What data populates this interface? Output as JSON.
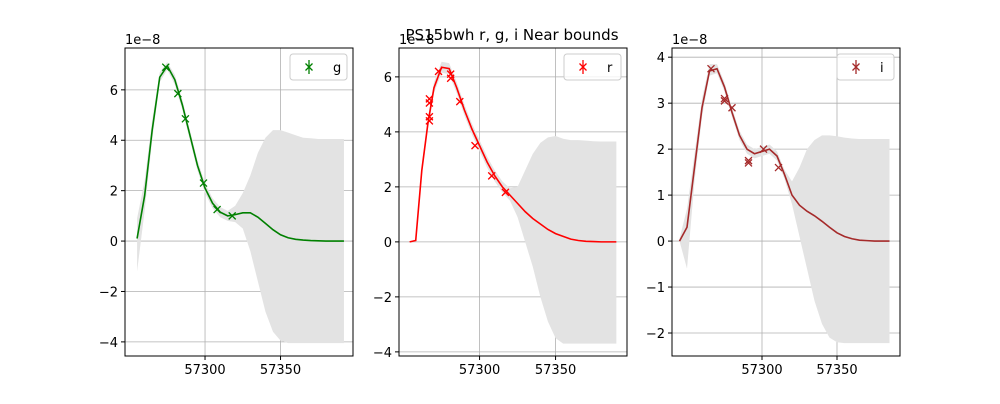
{
  "title": "PS15bwh  r, g, i Near bounds",
  "chart_data": [
    {
      "type": "line",
      "offset_label": "1e−8",
      "xlim": [
        57247,
        57398
      ],
      "xticks": [
        57300,
        57350
      ],
      "ylim": [
        -4.56,
        7.66
      ],
      "yticks": [
        {
          "value": -4,
          "label": "−4"
        },
        {
          "value": -2,
          "label": "−2"
        },
        0,
        2,
        4,
        6
      ],
      "grid": true,
      "legend": "upper right",
      "model": {
        "color": "#008000",
        "band_color": "#e3e3e3",
        "x": [
          57255,
          57260,
          57265,
          57270,
          57275,
          57280,
          57285,
          57290,
          57295,
          57300,
          57305,
          57310,
          57315,
          57320,
          57325,
          57330,
          57335,
          57340,
          57345,
          57350,
          57355,
          57360,
          57365,
          57370,
          57375,
          57380,
          57385,
          57392
        ],
        "values": [
          0.1,
          1.8,
          4.4,
          6.5,
          6.95,
          6.4,
          5.4,
          4.2,
          3.0,
          2.1,
          1.5,
          1.15,
          1.0,
          1.05,
          1.12,
          1.12,
          0.95,
          0.7,
          0.45,
          0.25,
          0.13,
          0.07,
          0.04,
          0.02,
          0.01,
          0,
          0,
          0
        ],
        "band_lower": [
          -1.2,
          1.2,
          4.0,
          6.3,
          6.8,
          6.2,
          5.2,
          4.0,
          2.8,
          1.9,
          1.3,
          0.95,
          0.8,
          0.75,
          0.5,
          -0.4,
          -1.6,
          -2.8,
          -3.6,
          -3.95,
          -4.05,
          -4.05,
          -4.05,
          -4.05,
          -4.05,
          -4.05,
          -4.05,
          -4.05
        ],
        "band_upper": [
          0.9,
          2.4,
          4.8,
          6.7,
          7.1,
          6.6,
          5.6,
          4.4,
          3.2,
          2.3,
          1.7,
          1.35,
          1.2,
          1.4,
          1.9,
          2.6,
          3.5,
          4.1,
          4.4,
          4.4,
          4.3,
          4.2,
          4.1,
          4.08,
          4.05,
          4.05,
          4.05,
          4.05
        ]
      },
      "series": [
        {
          "name": "g",
          "color": "#008000",
          "x": [
            57274,
            57282,
            57287,
            57299,
            57308,
            57318
          ],
          "values": [
            6.9,
            5.85,
            4.85,
            2.3,
            1.25,
            1.0
          ]
        }
      ]
    },
    {
      "type": "line",
      "offset_label": "1e−8",
      "xlim": [
        57247,
        57397
      ],
      "xticks": [
        57300,
        57350
      ],
      "ylim": [
        -4.15,
        7.05
      ],
      "yticks": [
        {
          "value": -4,
          "label": "−4"
        },
        {
          "value": -2,
          "label": "−2"
        },
        0,
        2,
        4,
        6
      ],
      "grid": true,
      "legend": "upper right",
      "model": {
        "color": "#ff0000",
        "band_color": "#e3e3e3",
        "x": [
          57254,
          57258,
          57262,
          57266,
          57270,
          57275,
          57280,
          57285,
          57290,
          57295,
          57300,
          57305,
          57310,
          57315,
          57320,
          57325,
          57330,
          57335,
          57340,
          57345,
          57350,
          57355,
          57360,
          57365,
          57370,
          57375,
          57380,
          57390
        ],
        "values": [
          0,
          0.05,
          2.6,
          4.3,
          5.6,
          6.35,
          6.3,
          5.6,
          4.8,
          4.1,
          3.5,
          2.9,
          2.4,
          2.0,
          1.7,
          1.4,
          1.1,
          0.85,
          0.65,
          0.45,
          0.3,
          0.2,
          0.1,
          0.05,
          0.02,
          0.01,
          0,
          0
        ],
        "band_lower": [
          0,
          0,
          2.4,
          4.1,
          5.4,
          6.15,
          6.1,
          5.4,
          4.6,
          3.9,
          3.3,
          2.7,
          2.2,
          1.8,
          1.5,
          0.9,
          0.0,
          -0.9,
          -2.0,
          -2.9,
          -3.5,
          -3.7,
          -3.7,
          -3.7,
          -3.7,
          -3.7,
          -3.7,
          -3.7
        ],
        "band_upper": [
          0,
          0.1,
          2.8,
          4.5,
          5.8,
          6.55,
          6.5,
          5.8,
          5.0,
          4.3,
          3.7,
          3.1,
          2.6,
          2.2,
          1.95,
          2.0,
          2.6,
          3.2,
          3.6,
          3.8,
          3.85,
          3.75,
          3.7,
          3.7,
          3.68,
          3.66,
          3.65,
          3.65
        ]
      },
      "series": [
        {
          "name": "r",
          "color": "#ff0000",
          "x": [
            57267,
            57267,
            57267,
            57267,
            57273,
            57281,
            57281,
            57287,
            57297,
            57308,
            57317
          ],
          "values": [
            4.4,
            4.55,
            5.05,
            5.2,
            6.2,
            6.1,
            5.95,
            5.1,
            3.5,
            2.4,
            1.8
          ]
        }
      ]
    },
    {
      "type": "line",
      "offset_label": "1e−8",
      "xlim": [
        57240,
        57392
      ],
      "xticks": [
        57300,
        57350
      ],
      "ylim": [
        -2.5,
        4.2
      ],
      "yticks": [
        {
          "value": -2,
          "label": "−2"
        },
        {
          "value": -1,
          "label": "−1"
        },
        0,
        1,
        2,
        3,
        4
      ],
      "grid": true,
      "legend": "upper right",
      "model": {
        "color": "#a52a2a",
        "band_color": "#e3e3e3",
        "x": [
          57245,
          57250,
          57255,
          57260,
          57265,
          57270,
          57275,
          57280,
          57285,
          57290,
          57295,
          57300,
          57305,
          57310,
          57315,
          57320,
          57325,
          57330,
          57335,
          57340,
          57345,
          57350,
          57355,
          57360,
          57365,
          57370,
          57375,
          57385
        ],
        "values": [
          0,
          0.3,
          1.6,
          2.9,
          3.7,
          3.75,
          3.35,
          2.8,
          2.3,
          2.0,
          1.9,
          1.95,
          2.0,
          1.85,
          1.45,
          1.0,
          0.78,
          0.65,
          0.55,
          0.43,
          0.3,
          0.18,
          0.1,
          0.05,
          0.02,
          0.01,
          0,
          0
        ],
        "band_lower": [
          0,
          -0.6,
          1.3,
          2.7,
          3.6,
          3.65,
          3.25,
          2.7,
          2.2,
          1.9,
          1.8,
          1.85,
          1.9,
          1.75,
          1.35,
          0.8,
          0.1,
          -0.6,
          -1.3,
          -1.8,
          -2.1,
          -2.2,
          -2.22,
          -2.22,
          -2.22,
          -2.22,
          -2.22,
          -2.22
        ],
        "band_upper": [
          0.05,
          0.7,
          1.9,
          3.1,
          3.85,
          3.85,
          3.45,
          2.9,
          2.4,
          2.1,
          2.0,
          2.05,
          2.1,
          1.95,
          1.55,
          1.3,
          1.6,
          2.0,
          2.2,
          2.3,
          2.3,
          2.28,
          2.25,
          2.23,
          2.22,
          2.22,
          2.22,
          2.22
        ]
      },
      "series": [
        {
          "name": "i",
          "color": "#a52a2a",
          "x": [
            57266,
            57275,
            57275,
            57280,
            57291,
            57291,
            57301,
            57311
          ],
          "values": [
            3.75,
            3.05,
            3.1,
            2.9,
            1.7,
            1.75,
            2.0,
            1.6
          ]
        }
      ]
    }
  ]
}
